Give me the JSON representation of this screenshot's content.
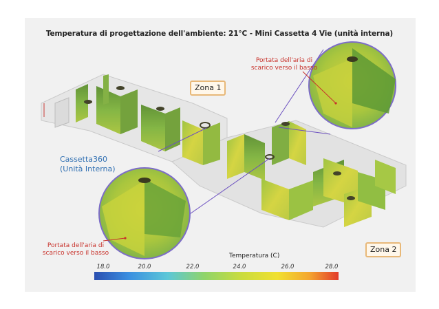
{
  "title": "Temperatura di progettazione dell'ambiente: 21°C - Mini Cassetta 4 Vie (unità interna)",
  "zones": {
    "zone1": "Zona 1",
    "zone2": "Zona 2"
  },
  "unit_label_line1": "Cassetta360",
  "unit_label_line2": "(Unità Interna)",
  "airflow_top": {
    "line1": "Portata dell'aria di",
    "line2": "scarico verso il basso"
  },
  "airflow_bottom": {
    "line1": "Portata dell'aria di",
    "line2": "scarico verso il basso"
  },
  "legend": {
    "title": "Temperatura (C)",
    "ticks": [
      "18.0",
      "20.0",
      "22.0",
      "24.0",
      "26.0",
      "28.0"
    ],
    "colors": [
      "#2b4fb0",
      "#3a8ee0",
      "#5cc7d8",
      "#8fd46a",
      "#c9dc3f",
      "#f1e030",
      "#f4a630",
      "#e23a2a"
    ]
  }
}
